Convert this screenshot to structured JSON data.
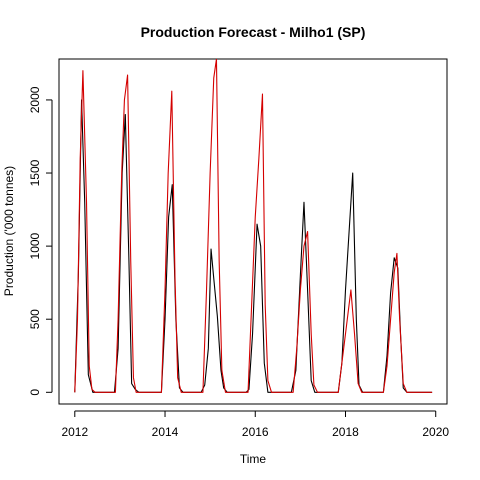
{
  "chart_data": {
    "type": "line",
    "title": "Production Forecast - Milho1 (SP)",
    "xlabel": "Time",
    "ylabel": "Production ('000 tonnes)",
    "xlim": [
      2011.65,
      2020.25
    ],
    "ylim": [
      -80,
      2280
    ],
    "xticks": [
      2012,
      2014,
      2016,
      2018,
      2020
    ],
    "yticks": [
      0,
      500,
      1000,
      1500,
      2000
    ],
    "colors": {
      "actual": "#000000",
      "forecast": "#d40000"
    },
    "series": [
      {
        "key": "actual",
        "color": "#000000",
        "points": [
          [
            2012.0,
            0
          ],
          [
            2012.08,
            820
          ],
          [
            2012.15,
            2000
          ],
          [
            2012.22,
            1300
          ],
          [
            2012.3,
            120
          ],
          [
            2012.4,
            0
          ],
          [
            2012.88,
            0
          ],
          [
            2012.96,
            300
          ],
          [
            2013.05,
            1500
          ],
          [
            2013.12,
            1900
          ],
          [
            2013.2,
            900
          ],
          [
            2013.26,
            60
          ],
          [
            2013.34,
            20
          ],
          [
            2013.42,
            0
          ],
          [
            2013.92,
            0
          ],
          [
            2014.0,
            500
          ],
          [
            2014.08,
            1200
          ],
          [
            2014.16,
            1420
          ],
          [
            2014.24,
            500
          ],
          [
            2014.32,
            30
          ],
          [
            2014.4,
            0
          ],
          [
            2014.8,
            0
          ],
          [
            2014.88,
            50
          ],
          [
            2014.96,
            300
          ],
          [
            2015.02,
            980
          ],
          [
            2015.08,
            780
          ],
          [
            2015.16,
            520
          ],
          [
            2015.24,
            150
          ],
          [
            2015.3,
            30
          ],
          [
            2015.38,
            0
          ],
          [
            2015.8,
            0
          ],
          [
            2015.86,
            20
          ],
          [
            2015.94,
            400
          ],
          [
            2016.04,
            1150
          ],
          [
            2016.12,
            1000
          ],
          [
            2016.2,
            200
          ],
          [
            2016.28,
            0
          ],
          [
            2016.8,
            0
          ],
          [
            2016.9,
            150
          ],
          [
            2017.0,
            800
          ],
          [
            2017.08,
            1300
          ],
          [
            2017.16,
            700
          ],
          [
            2017.24,
            80
          ],
          [
            2017.32,
            0
          ],
          [
            2017.84,
            0
          ],
          [
            2017.92,
            200
          ],
          [
            2018.0,
            700
          ],
          [
            2018.08,
            1100
          ],
          [
            2018.16,
            1500
          ],
          [
            2018.24,
            500
          ],
          [
            2018.3,
            50
          ],
          [
            2018.38,
            0
          ],
          [
            2018.84,
            0
          ],
          [
            2018.92,
            250
          ],
          [
            2019.0,
            680
          ],
          [
            2019.08,
            920
          ],
          [
            2019.16,
            850
          ],
          [
            2019.22,
            400
          ],
          [
            2019.28,
            30
          ],
          [
            2019.36,
            0
          ],
          [
            2019.92,
            0
          ]
        ]
      },
      {
        "key": "forecast",
        "color": "#d40000",
        "points": [
          [
            2012.0,
            0
          ],
          [
            2012.06,
            500
          ],
          [
            2012.12,
            1600
          ],
          [
            2012.18,
            2200
          ],
          [
            2012.26,
            1300
          ],
          [
            2012.32,
            180
          ],
          [
            2012.38,
            20
          ],
          [
            2012.45,
            0
          ],
          [
            2012.9,
            0
          ],
          [
            2012.96,
            500
          ],
          [
            2013.04,
            1500
          ],
          [
            2013.1,
            2000
          ],
          [
            2013.17,
            2170
          ],
          [
            2013.24,
            900
          ],
          [
            2013.3,
            100
          ],
          [
            2013.36,
            0
          ],
          [
            2013.92,
            0
          ],
          [
            2014.0,
            700
          ],
          [
            2014.07,
            1500
          ],
          [
            2014.15,
            2060
          ],
          [
            2014.22,
            800
          ],
          [
            2014.28,
            100
          ],
          [
            2014.36,
            0
          ],
          [
            2014.84,
            0
          ],
          [
            2014.92,
            700
          ],
          [
            2015.0,
            1500
          ],
          [
            2015.08,
            2150
          ],
          [
            2015.14,
            2280
          ],
          [
            2015.2,
            900
          ],
          [
            2015.26,
            150
          ],
          [
            2015.34,
            0
          ],
          [
            2015.84,
            0
          ],
          [
            2015.92,
            600
          ],
          [
            2016.0,
            1200
          ],
          [
            2016.08,
            1600
          ],
          [
            2016.16,
            2040
          ],
          [
            2016.22,
            600
          ],
          [
            2016.28,
            80
          ],
          [
            2016.36,
            0
          ],
          [
            2016.84,
            0
          ],
          [
            2016.92,
            300
          ],
          [
            2017.0,
            700
          ],
          [
            2017.08,
            1000
          ],
          [
            2017.16,
            1100
          ],
          [
            2017.24,
            400
          ],
          [
            2017.3,
            50
          ],
          [
            2017.38,
            0
          ],
          [
            2017.84,
            0
          ],
          [
            2017.92,
            200
          ],
          [
            2018.02,
            450
          ],
          [
            2018.12,
            700
          ],
          [
            2018.2,
            400
          ],
          [
            2018.28,
            60
          ],
          [
            2018.36,
            0
          ],
          [
            2018.84,
            0
          ],
          [
            2018.92,
            180
          ],
          [
            2019.0,
            500
          ],
          [
            2019.08,
            820
          ],
          [
            2019.14,
            950
          ],
          [
            2019.2,
            500
          ],
          [
            2019.28,
            60
          ],
          [
            2019.36,
            0
          ],
          [
            2019.92,
            0
          ]
        ]
      }
    ]
  }
}
